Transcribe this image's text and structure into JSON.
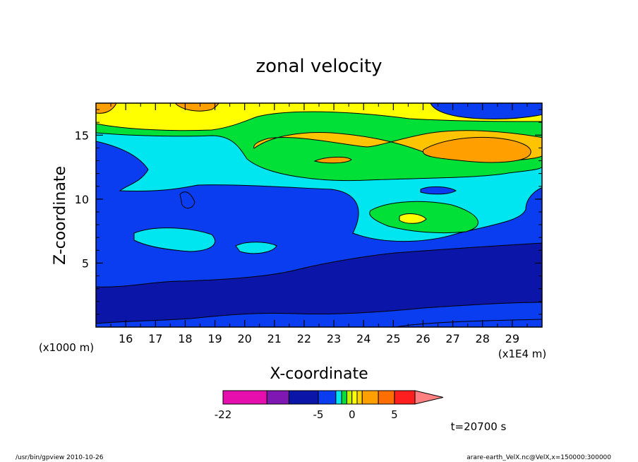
{
  "chart_data": {
    "type": "heatmap",
    "subtype": "filled-contour",
    "title": "zonal velocity",
    "xlabel": "X-coordinate",
    "ylabel": "Z-coordinate",
    "x_unit_label": "(x1E4 m)",
    "y_unit_label": "(x1000 m)",
    "xlim": [
      15.0,
      30.0
    ],
    "ylim": [
      0.0,
      17.5
    ],
    "x_ticks": [
      "16",
      "17",
      "18",
      "19",
      "20",
      "21",
      "22",
      "23",
      "24",
      "25",
      "26",
      "27",
      "28",
      "29"
    ],
    "y_ticks": [
      "5",
      "10",
      "15"
    ],
    "colorbar": {
      "levels": [
        -22,
        -17,
        -9,
        -5,
        -3,
        -1,
        -0.5,
        0,
        0.5,
        1,
        3,
        5,
        7,
        10
      ],
      "tick_labels": [
        "-22",
        "-5",
        "0",
        "5"
      ],
      "colors": [
        "#e60fae",
        "#7f18b2",
        "#0b16a8",
        "#0a3cf0",
        "#00e6f0",
        "#00e036",
        "#c6f000",
        "#ffff00",
        "#ffd200",
        "#ffa000",
        "#ff6e00",
        "#ff1e1e",
        "#ff8080"
      ]
    },
    "field_colors": {
      "deep_negative": "#0b16a8",
      "negative": "#0a3cf0",
      "weak_negative": "#00e6f0",
      "near_zero": "#00e036",
      "weak_positive": "#ffff00",
      "positive": "#ffc400",
      "strong_positive": "#ffa000"
    },
    "time_label": "t=20700 s"
  },
  "footer": {
    "left": "/usr/bin/gpview  2010-10-26",
    "right": "arare-earth_VelX.nc@VelX,x=150000:300000"
  }
}
